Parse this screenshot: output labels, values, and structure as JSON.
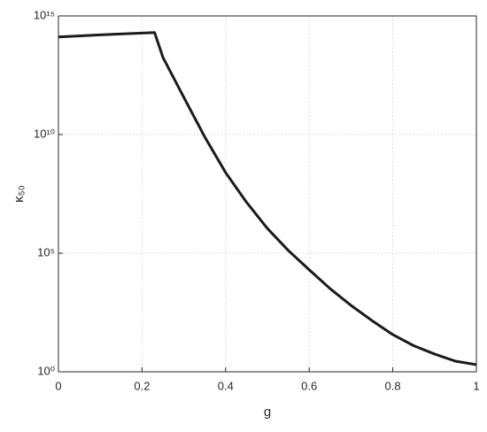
{
  "chart_data": {
    "type": "line",
    "x_label": "g",
    "y_label": "κ₅₀",
    "x": [
      0,
      0.1,
      0.2,
      0.23,
      0.25,
      0.3,
      0.35,
      0.4,
      0.45,
      0.5,
      0.55,
      0.6,
      0.65,
      0.7,
      0.75,
      0.8,
      0.85,
      0.9,
      0.95,
      1.0
    ],
    "series": [
      {
        "name": "κ50",
        "color": "#1a1a1a",
        "values": [
          130000000000000.0,
          160000000000000.0,
          190000000000000.0,
          200000000000000.0,
          18000000000000.0,
          370000000000.0,
          8000000000.0,
          250000000.0,
          14000000.0,
          1100000.0,
          130000.0,
          20000.0,
          3200,
          630,
          145,
          37,
          12.6,
          5.6,
          2.8,
          2
        ]
      }
    ],
    "xlim": [
      0,
      1
    ],
    "xticks": [
      0,
      0.2,
      0.4,
      0.6,
      0.8,
      1
    ],
    "ylim": [
      1,
      1000000000000000.0
    ],
    "log_y": true,
    "yticks": [
      {
        "value": 1,
        "label": "10⁰"
      },
      {
        "value": 100000,
        "label": "10⁵"
      },
      {
        "value": 10000000000,
        "label": "10¹⁰"
      },
      {
        "value": 1000000000000000.0,
        "label": "10¹⁵"
      }
    ],
    "grid": true
  }
}
